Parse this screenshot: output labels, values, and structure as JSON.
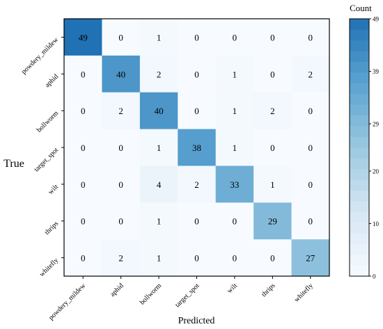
{
  "chart_data": {
    "type": "heatmap",
    "title": "",
    "xlabel": "Predicted",
    "ylabel": "True",
    "x_categories": [
      "powdery_mildew",
      "aphid",
      "bollworm",
      "target_spot",
      "wilt",
      "thrips",
      "whitefly"
    ],
    "y_categories": [
      "powdery_mildew",
      "aphid",
      "bollworm",
      "target_spot",
      "wilt",
      "thrips",
      "whitefly"
    ],
    "matrix": [
      [
        49,
        0,
        1,
        0,
        0,
        0,
        0
      ],
      [
        0,
        40,
        2,
        0,
        1,
        0,
        2
      ],
      [
        0,
        2,
        40,
        0,
        1,
        2,
        0
      ],
      [
        0,
        0,
        1,
        38,
        1,
        0,
        0
      ],
      [
        0,
        0,
        4,
        2,
        33,
        1,
        0
      ],
      [
        0,
        0,
        1,
        0,
        0,
        29,
        0
      ],
      [
        0,
        2,
        1,
        0,
        0,
        0,
        27
      ]
    ],
    "colorbar": {
      "label": "Count",
      "range": [
        0,
        49
      ],
      "ticks": [
        0,
        10,
        20,
        29,
        39,
        49
      ],
      "colormap": "Blues",
      "low_color": "#f7fbff",
      "high_color": "#2171b5"
    },
    "grid": false,
    "annotations": "cell counts shown in each cell"
  }
}
